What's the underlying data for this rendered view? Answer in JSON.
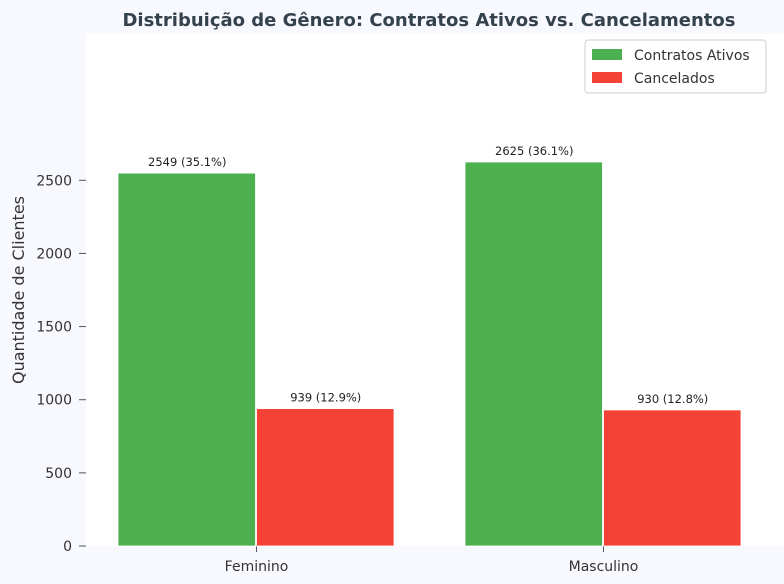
{
  "chart_data": {
    "type": "bar",
    "title": "Distribuição de Gênero: Contratos Ativos vs. Cancelamentos",
    "xlabel": "",
    "ylabel": "Quantidade de Clientes",
    "categories": [
      "Feminino",
      "Masculino"
    ],
    "series": [
      {
        "name": "Contratos Ativos",
        "color": "#4caf50",
        "values": [
          2549,
          2625
        ],
        "labels": [
          "2549 (35.1%)",
          "2625 (36.1%)"
        ]
      },
      {
        "name": "Cancelados",
        "color": "#f44336",
        "values": [
          939,
          930
        ],
        "labels": [
          "939 (12.9%)",
          "930 (12.8%)"
        ]
      }
    ],
    "ylim": [
      0,
      3500
    ],
    "yticks": [
      0,
      500,
      1000,
      1500,
      2000,
      2500
    ],
    "ytick_labels": [
      "0",
      "500",
      "1000",
      "1500",
      "2000",
      "2500"
    ],
    "grid": false,
    "legend": "top-right"
  }
}
